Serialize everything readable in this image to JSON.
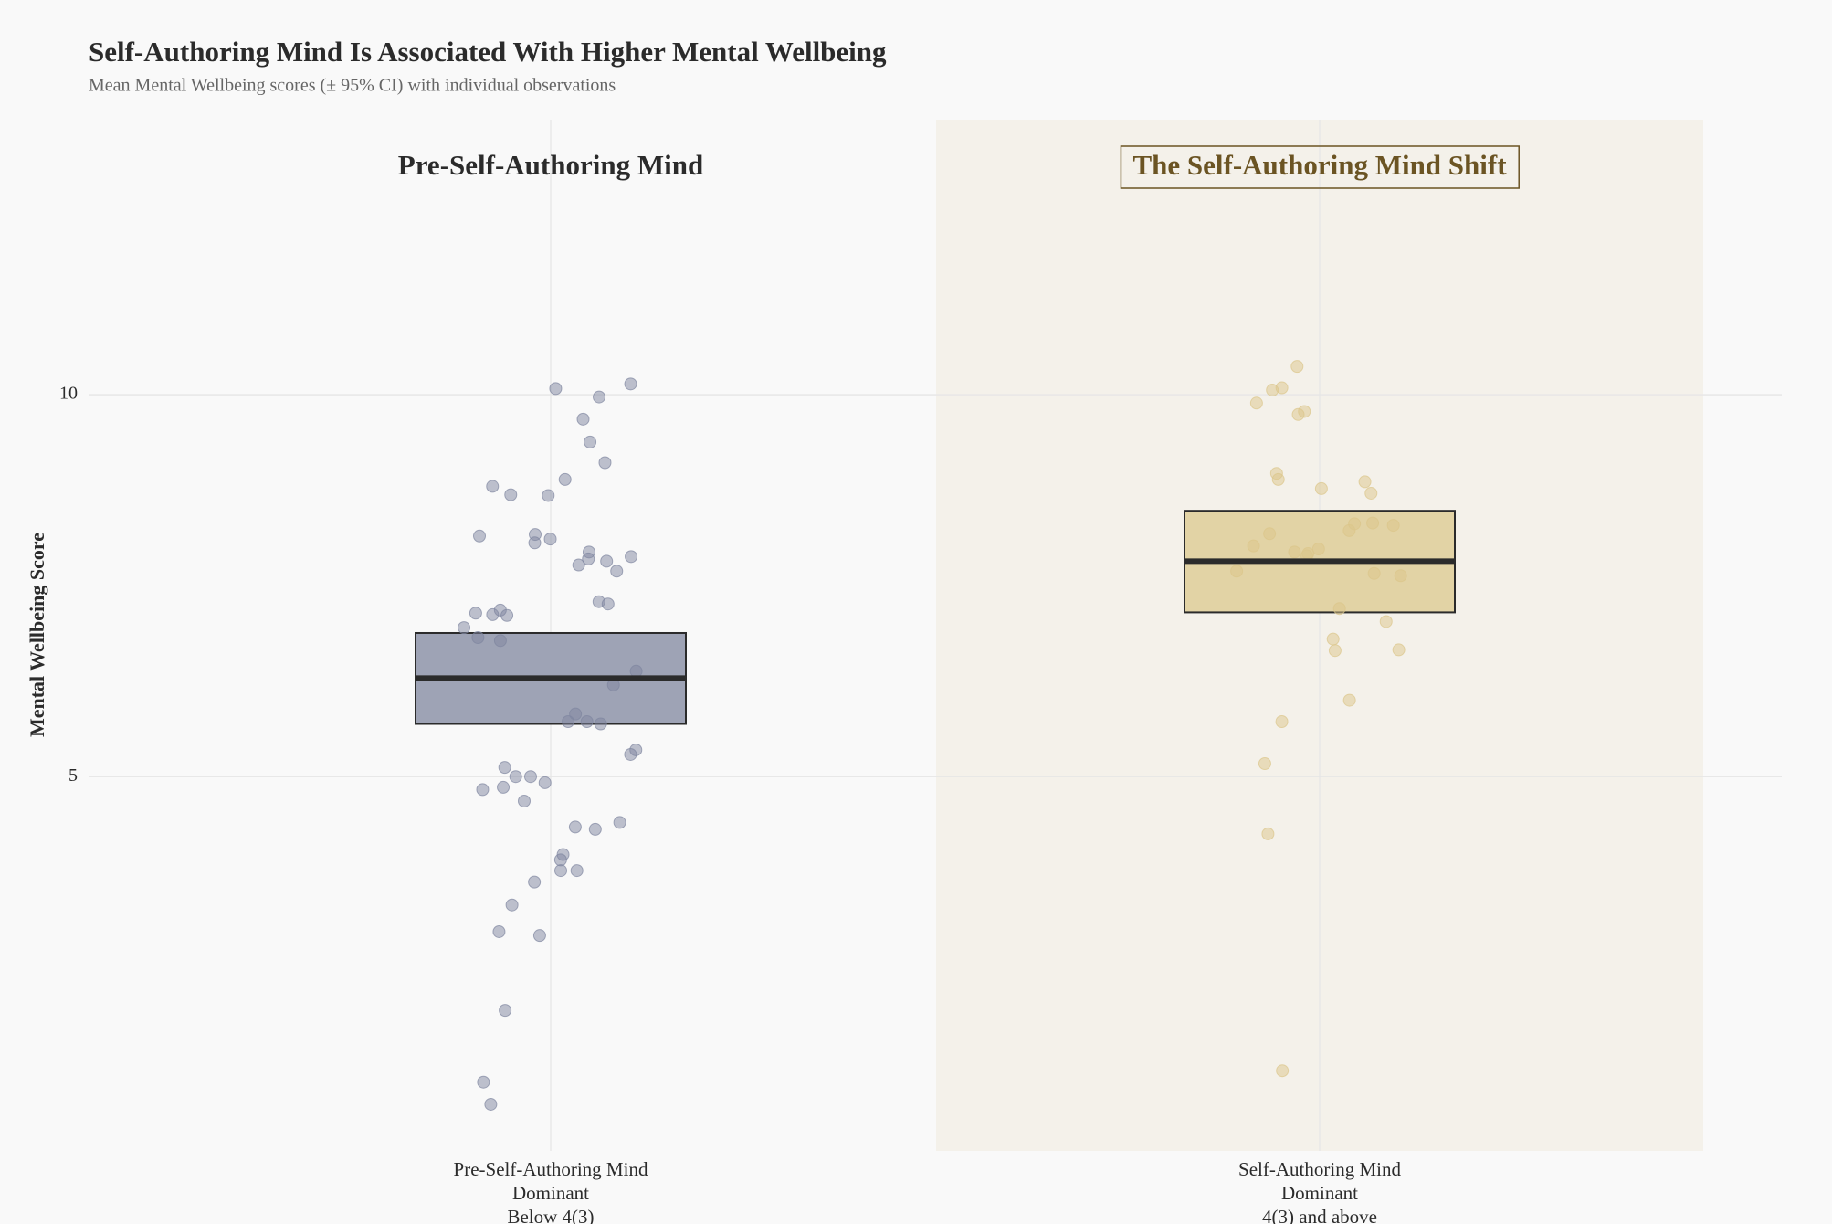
{
  "chart_data": {
    "type": "mean-ci-strip",
    "title": "Self-Authoring Mind Is Associated With Higher Mental Wellbeing",
    "subtitle": "Mean Mental Wellbeing scores (± 95% CI) with individual observations",
    "ylabel": "Mental Wellbeing Score",
    "categories": [
      [
        "Pre-Self-Authoring Mind",
        "Dominant",
        "Below 4(3)"
      ],
      [
        "Self-Authoring Mind",
        "Dominant",
        "4(3) and above"
      ]
    ],
    "panel_labels": [
      "Pre-Self-Authoring Mind",
      "The Self-Authoring Mind Shift"
    ],
    "highlight_category": 1,
    "ylim": [
      0.1,
      13.6
    ],
    "yticks": [
      5,
      10
    ],
    "grid": true,
    "groups": [
      {
        "mean": 6.29,
        "ci_low": 5.69,
        "ci_high": 6.88,
        "color": "#9ea3b5",
        "point_color": "#7f86a0",
        "points": [
          10.14,
          10.08,
          9.97,
          9.68,
          9.38,
          9.11,
          8.89,
          8.8,
          8.69,
          8.68,
          8.17,
          8.15,
          8.11,
          8.06,
          7.94,
          7.88,
          7.85,
          7.82,
          7.77,
          7.69,
          7.29,
          7.26,
          7.18,
          7.14,
          7.12,
          7.11,
          6.95,
          6.82,
          6.78,
          6.38,
          6.2,
          5.82,
          5.72,
          5.72,
          5.69,
          5.35,
          5.29,
          5.12,
          5.0,
          5.0,
          4.92,
          4.86,
          4.83,
          4.68,
          4.4,
          4.34,
          4.31,
          3.98,
          3.91,
          3.77,
          3.77,
          3.62,
          3.32,
          2.97,
          2.92,
          1.94,
          1.0,
          0.71
        ]
      },
      {
        "mean": 7.82,
        "ci_low": 7.15,
        "ci_high": 8.48,
        "color": "#e2d3a5",
        "point_color": "#dcc68a",
        "points": [
          10.37,
          10.09,
          10.06,
          9.89,
          9.78,
          9.74,
          8.97,
          8.89,
          8.86,
          8.77,
          8.71,
          8.32,
          8.31,
          8.29,
          8.22,
          8.18,
          8.02,
          7.98,
          7.94,
          7.92,
          7.89,
          7.69,
          7.66,
          7.63,
          7.2,
          7.03,
          6.8,
          6.66,
          6.65,
          6.0,
          5.72,
          5.17,
          4.25,
          1.15
        ]
      }
    ]
  }
}
